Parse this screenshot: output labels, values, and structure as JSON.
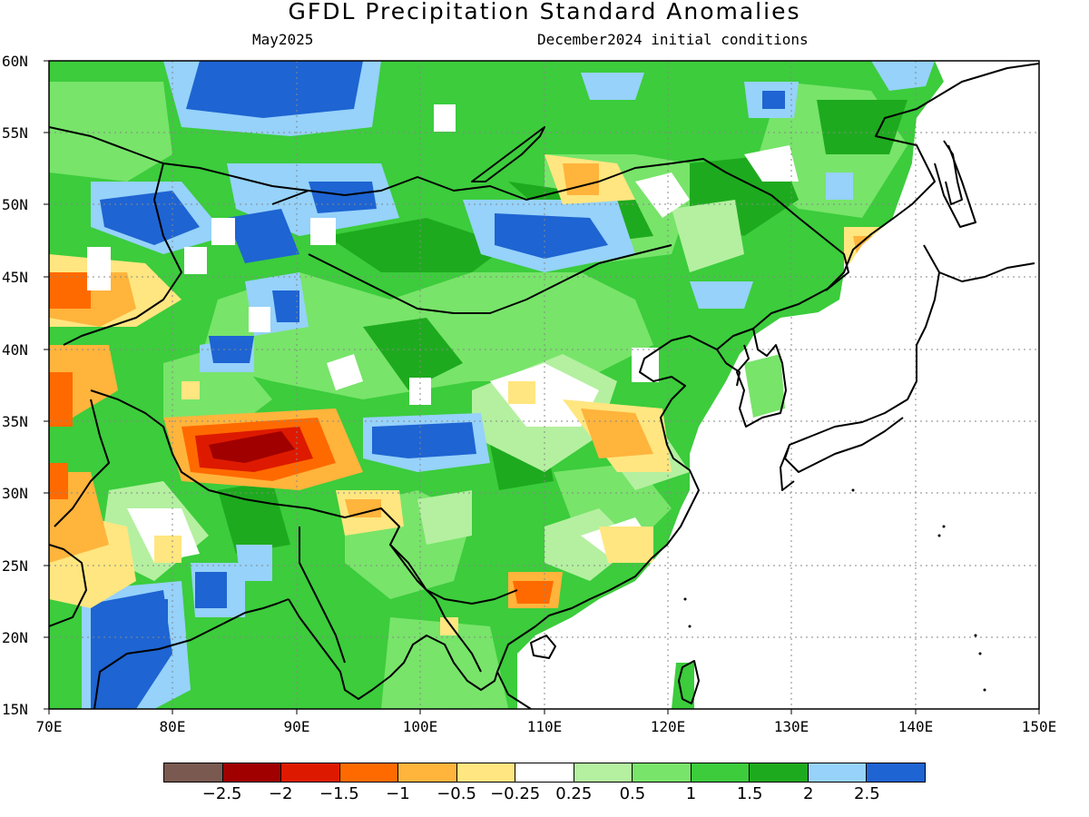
{
  "title": "GFDL Precipitation Standard Anomalies",
  "subtitle_left": "May2025",
  "subtitle_right": "December2024 initial conditions",
  "y_axis_labels": [
    "60N",
    "55N",
    "50N",
    "45N",
    "40N",
    "35N",
    "30N",
    "25N",
    "20N",
    "15N"
  ],
  "x_axis_labels": [
    "70E",
    "80E",
    "90E",
    "100E",
    "110E",
    "120E",
    "130E",
    "140E",
    "150E"
  ],
  "colorbar": {
    "colors": [
      "#7a5a50",
      "#a00000",
      "#dd1a00",
      "#ff6a00",
      "#ffb43c",
      "#ffe680",
      "#ffffff",
      "#b4f0a0",
      "#78e46a",
      "#3ccc3c",
      "#1eaa1e",
      "#96d2fa",
      "#1e64d2"
    ],
    "labels": [
      "-2.5",
      "-2",
      "-1.5",
      "-1",
      "-0.5",
      "-0.25",
      "0.25",
      "0.5",
      "1",
      "1.5",
      "2",
      "2.5"
    ]
  },
  "legend_colors": {
    "land_base": "#3ccc3c",
    "light_green": "#78e46a",
    "dark_green": "#1eaa1e",
    "pale_green": "#b4f0a0",
    "light_blue": "#96d2fa",
    "blue": "#1e64d2",
    "yellow": "#ffe680",
    "orange": "#ffb43c",
    "red": "#dd1a00",
    "dark_red": "#a00000",
    "deep_orange": "#ff6a00"
  }
}
